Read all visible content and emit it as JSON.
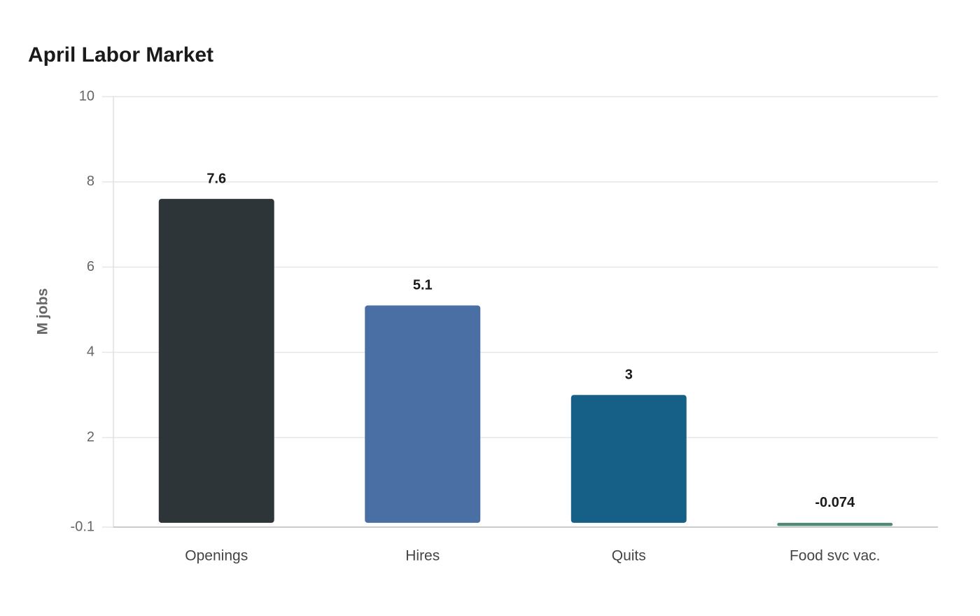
{
  "chart_data": {
    "type": "bar",
    "title": "April Labor Market",
    "y_label": "M jobs",
    "categories": [
      "Openings",
      "Hires",
      "Quits",
      "Food svc vac."
    ],
    "values": [
      7.6,
      5.1,
      3,
      -0.074
    ],
    "colors": [
      "#2e3538",
      "#4a6fa5",
      "#166088",
      "#4f8a77"
    ],
    "ylim": [
      -0.1,
      10
    ],
    "yticks": [
      -0.1,
      2,
      4,
      6,
      8,
      10
    ],
    "grid": true
  }
}
